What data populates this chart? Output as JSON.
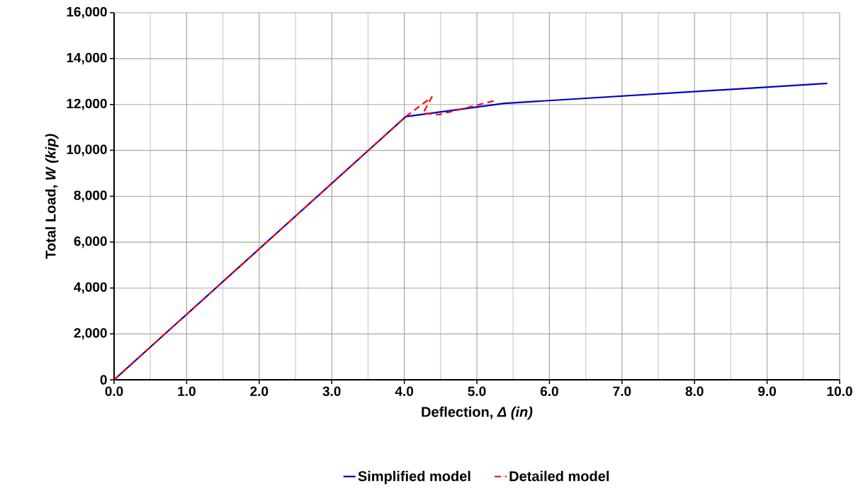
{
  "chart_data": {
    "type": "line",
    "xlabel": "Deflection, *Δ (in)*",
    "ylabel": "Total Load, *W (kip)*",
    "xlim": [
      0,
      10
    ],
    "ylim": [
      0,
      16000
    ],
    "xticks": [
      {
        "value": 0,
        "label": "0.0"
      },
      {
        "value": 1,
        "label": "1.0"
      },
      {
        "value": 2,
        "label": "2.0"
      },
      {
        "value": 3,
        "label": "3.0"
      },
      {
        "value": 4,
        "label": "4.0"
      },
      {
        "value": 5,
        "label": "5.0"
      },
      {
        "value": 6,
        "label": "6.0"
      },
      {
        "value": 7,
        "label": "7.0"
      },
      {
        "value": 8,
        "label": "8.0"
      },
      {
        "value": 9,
        "label": "9.0"
      },
      {
        "value": 10,
        "label": "10.0"
      }
    ],
    "yticks": [
      0,
      {
        "value": 2000,
        "label": "2,000"
      },
      {
        "value": 4000,
        "label": "4,000"
      },
      {
        "value": 6000,
        "label": "6,000"
      },
      {
        "value": 8000,
        "label": "8,000"
      },
      {
        "value": 10000,
        "label": "10,000"
      },
      {
        "value": 12000,
        "label": "12,000"
      },
      {
        "value": 14000,
        "label": "14,000"
      },
      {
        "value": 16000,
        "label": "16,000"
      }
    ],
    "grid": true,
    "legend": "bottom",
    "marker": "none",
    "series": [
      {
        "name": "Simplified model",
        "color": "#0000cc",
        "line_style": "solid",
        "x": [
          0,
          4.02,
          5.38,
          9.83
        ],
        "values": [
          0,
          11470,
          12050,
          12920
        ]
      },
      {
        "name": "Detailed model",
        "color": "#ff0000",
        "line_style": "dashed",
        "x": [
          0,
          4.02,
          4.38,
          4.26,
          4.48,
          5.23
        ],
        "values": [
          0,
          11470,
          12330,
          11620,
          11560,
          12150
        ]
      }
    ]
  }
}
